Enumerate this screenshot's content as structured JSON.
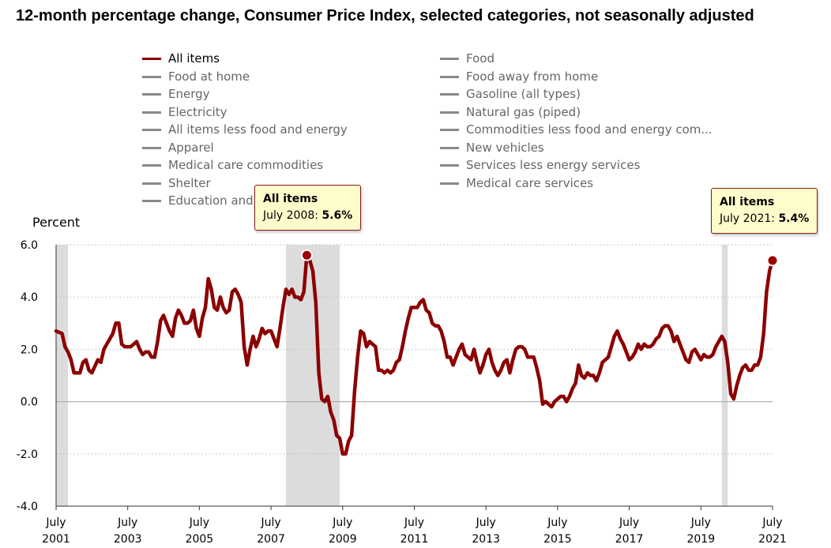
{
  "chart_data": {
    "type": "line",
    "title": "12-month percentage change, Consumer Price Index, selected categories, not seasonally adjusted",
    "ylabel": "Percent",
    "xlabel": "",
    "ylim": [
      -4.0,
      6.0
    ],
    "xlim": [
      "2001-07",
      "2021-07"
    ],
    "y_ticks": [
      "6.0",
      "4.0",
      "2.0",
      "0.0",
      "-2.0",
      "-4.0"
    ],
    "x_ticks": [
      {
        "month": "July",
        "year": "2001"
      },
      {
        "month": "July",
        "year": "2003"
      },
      {
        "month": "July",
        "year": "2005"
      },
      {
        "month": "July",
        "year": "2007"
      },
      {
        "month": "July",
        "year": "2009"
      },
      {
        "month": "July",
        "year": "2011"
      },
      {
        "month": "July",
        "year": "2013"
      },
      {
        "month": "July",
        "year": "2015"
      },
      {
        "month": "July",
        "year": "2017"
      },
      {
        "month": "July",
        "year": "2019"
      },
      {
        "month": "July",
        "year": "2021"
      }
    ],
    "grid": "horizontal-dotted",
    "recessions": [
      {
        "start": "2001-07",
        "end": "2001-11"
      },
      {
        "start": "2007-12",
        "end": "2009-06"
      },
      {
        "start": "2020-02",
        "end": "2020-04"
      }
    ],
    "series": [
      {
        "name": "All items",
        "color": "#8b0000",
        "points": [
          [
            "2001-07",
            2.7
          ],
          [
            "2001-09",
            2.6
          ],
          [
            "2001-10",
            2.1
          ],
          [
            "2001-11",
            1.9
          ],
          [
            "2001-12",
            1.6
          ],
          [
            "2002-01",
            1.1
          ],
          [
            "2002-03",
            1.1
          ],
          [
            "2002-04",
            1.5
          ],
          [
            "2002-05",
            1.6
          ],
          [
            "2002-06",
            1.2
          ],
          [
            "2002-07",
            1.1
          ],
          [
            "2002-09",
            1.6
          ],
          [
            "2002-10",
            1.5
          ],
          [
            "2002-11",
            2.0
          ],
          [
            "2002-12",
            2.2
          ],
          [
            "2003-01",
            2.4
          ],
          [
            "2003-02",
            2.6
          ],
          [
            "2003-03",
            3.0
          ],
          [
            "2003-04",
            3.0
          ],
          [
            "2003-05",
            2.2
          ],
          [
            "2003-06",
            2.1
          ],
          [
            "2003-07",
            2.1
          ],
          [
            "2003-08",
            2.1
          ],
          [
            "2003-09",
            2.2
          ],
          [
            "2003-10",
            2.3
          ],
          [
            "2003-11",
            2.0
          ],
          [
            "2003-12",
            1.8
          ],
          [
            "2004-01",
            1.9
          ],
          [
            "2004-02",
            1.9
          ],
          [
            "2004-03",
            1.7
          ],
          [
            "2004-04",
            1.7
          ],
          [
            "2004-05",
            2.3
          ],
          [
            "2004-06",
            3.1
          ],
          [
            "2004-07",
            3.3
          ],
          [
            "2004-08",
            3.0
          ],
          [
            "2004-09",
            2.7
          ],
          [
            "2004-10",
            2.5
          ],
          [
            "2004-11",
            3.2
          ],
          [
            "2004-12",
            3.5
          ],
          [
            "2005-01",
            3.3
          ],
          [
            "2005-02",
            3.0
          ],
          [
            "2005-03",
            3.0
          ],
          [
            "2005-04",
            3.1
          ],
          [
            "2005-05",
            3.5
          ],
          [
            "2005-06",
            2.8
          ],
          [
            "2005-07",
            2.5
          ],
          [
            "2005-08",
            3.2
          ],
          [
            "2005-09",
            3.6
          ],
          [
            "2005-10",
            4.7
          ],
          [
            "2005-11",
            4.3
          ],
          [
            "2005-12",
            3.6
          ],
          [
            "2006-01",
            3.5
          ],
          [
            "2006-02",
            4.0
          ],
          [
            "2006-03",
            3.6
          ],
          [
            "2006-04",
            3.4
          ],
          [
            "2006-05",
            3.5
          ],
          [
            "2006-06",
            4.2
          ],
          [
            "2006-07",
            4.3
          ],
          [
            "2006-08",
            4.1
          ],
          [
            "2006-09",
            3.8
          ],
          [
            "2006-10",
            2.1
          ],
          [
            "2006-11",
            1.4
          ],
          [
            "2006-12",
            2.0
          ],
          [
            "2007-01",
            2.5
          ],
          [
            "2007-02",
            2.1
          ],
          [
            "2007-03",
            2.4
          ],
          [
            "2007-04",
            2.8
          ],
          [
            "2007-05",
            2.6
          ],
          [
            "2007-06",
            2.7
          ],
          [
            "2007-07",
            2.7
          ],
          [
            "2007-08",
            2.4
          ],
          [
            "2007-09",
            2.1
          ],
          [
            "2007-10",
            2.8
          ],
          [
            "2007-11",
            3.6
          ],
          [
            "2007-12",
            4.3
          ],
          [
            "2008-01",
            4.1
          ],
          [
            "2008-02",
            4.3
          ],
          [
            "2008-03",
            4.0
          ],
          [
            "2008-04",
            4.0
          ],
          [
            "2008-05",
            3.9
          ],
          [
            "2008-06",
            4.2
          ],
          [
            "2008-07",
            5.6
          ],
          [
            "2008-08",
            5.4
          ],
          [
            "2008-09",
            5.0
          ],
          [
            "2008-10",
            3.8
          ],
          [
            "2008-11",
            1.1
          ],
          [
            "2008-12",
            0.1
          ],
          [
            "2009-01",
            0.0
          ],
          [
            "2009-02",
            0.2
          ],
          [
            "2009-03",
            -0.4
          ],
          [
            "2009-04",
            -0.7
          ],
          [
            "2009-05",
            -1.3
          ],
          [
            "2009-06",
            -1.4
          ],
          [
            "2009-07",
            -2.0
          ],
          [
            "2009-08",
            -2.0
          ],
          [
            "2009-09",
            -1.5
          ],
          [
            "2009-10",
            -1.3
          ],
          [
            "2009-11",
            0.4
          ],
          [
            "2009-12",
            1.7
          ],
          [
            "2010-01",
            2.7
          ],
          [
            "2010-02",
            2.6
          ],
          [
            "2010-03",
            2.1
          ],
          [
            "2010-04",
            2.3
          ],
          [
            "2010-05",
            2.2
          ],
          [
            "2010-06",
            2.1
          ],
          [
            "2010-07",
            1.2
          ],
          [
            "2010-08",
            1.2
          ],
          [
            "2010-09",
            1.1
          ],
          [
            "2010-10",
            1.2
          ],
          [
            "2010-11",
            1.1
          ],
          [
            "2010-12",
            1.2
          ],
          [
            "2011-01",
            1.5
          ],
          [
            "2011-02",
            1.6
          ],
          [
            "2011-03",
            2.1
          ],
          [
            "2011-04",
            2.7
          ],
          [
            "2011-05",
            3.2
          ],
          [
            "2011-06",
            3.6
          ],
          [
            "2011-07",
            3.6
          ],
          [
            "2011-08",
            3.6
          ],
          [
            "2011-09",
            3.8
          ],
          [
            "2011-10",
            3.9
          ],
          [
            "2011-11",
            3.5
          ],
          [
            "2011-12",
            3.4
          ],
          [
            "2012-01",
            3.0
          ],
          [
            "2012-02",
            2.9
          ],
          [
            "2012-03",
            2.9
          ],
          [
            "2012-04",
            2.7
          ],
          [
            "2012-05",
            2.3
          ],
          [
            "2012-06",
            1.7
          ],
          [
            "2012-07",
            1.7
          ],
          [
            "2012-08",
            1.4
          ],
          [
            "2012-09",
            1.7
          ],
          [
            "2012-10",
            2.0
          ],
          [
            "2012-11",
            2.2
          ],
          [
            "2012-12",
            1.8
          ],
          [
            "2013-01",
            1.7
          ],
          [
            "2013-02",
            1.6
          ],
          [
            "2013-03",
            2.0
          ],
          [
            "2013-04",
            1.5
          ],
          [
            "2013-05",
            1.1
          ],
          [
            "2013-06",
            1.4
          ],
          [
            "2013-07",
            1.8
          ],
          [
            "2013-08",
            2.0
          ],
          [
            "2013-09",
            1.5
          ],
          [
            "2013-10",
            1.2
          ],
          [
            "2013-11",
            1.0
          ],
          [
            "2013-12",
            1.2
          ],
          [
            "2014-01",
            1.5
          ],
          [
            "2014-02",
            1.6
          ],
          [
            "2014-03",
            1.1
          ],
          [
            "2014-04",
            1.6
          ],
          [
            "2014-05",
            2.0
          ],
          [
            "2014-06",
            2.1
          ],
          [
            "2014-07",
            2.1
          ],
          [
            "2014-08",
            2.0
          ],
          [
            "2014-09",
            1.7
          ],
          [
            "2014-10",
            1.7
          ],
          [
            "2014-11",
            1.7
          ],
          [
            "2014-12",
            1.3
          ],
          [
            "2015-01",
            0.8
          ],
          [
            "2015-02",
            -0.1
          ],
          [
            "2015-03",
            0.0
          ],
          [
            "2015-04",
            -0.1
          ],
          [
            "2015-05",
            -0.2
          ],
          [
            "2015-06",
            0.0
          ],
          [
            "2015-07",
            0.1
          ],
          [
            "2015-08",
            0.2
          ],
          [
            "2015-09",
            0.2
          ],
          [
            "2015-10",
            0.0
          ],
          [
            "2015-11",
            0.2
          ],
          [
            "2015-12",
            0.5
          ],
          [
            "2016-01",
            0.7
          ],
          [
            "2016-02",
            1.4
          ],
          [
            "2016-03",
            1.0
          ],
          [
            "2016-04",
            0.9
          ],
          [
            "2016-05",
            1.1
          ],
          [
            "2016-06",
            1.0
          ],
          [
            "2016-07",
            1.0
          ],
          [
            "2016-08",
            0.8
          ],
          [
            "2016-09",
            1.1
          ],
          [
            "2016-10",
            1.5
          ],
          [
            "2016-11",
            1.6
          ],
          [
            "2016-12",
            1.7
          ],
          [
            "2017-01",
            2.1
          ],
          [
            "2017-02",
            2.5
          ],
          [
            "2017-03",
            2.7
          ],
          [
            "2017-04",
            2.4
          ],
          [
            "2017-05",
            2.2
          ],
          [
            "2017-06",
            1.9
          ],
          [
            "2017-07",
            1.6
          ],
          [
            "2017-08",
            1.7
          ],
          [
            "2017-09",
            1.9
          ],
          [
            "2017-10",
            2.2
          ],
          [
            "2017-11",
            2.0
          ],
          [
            "2017-12",
            2.2
          ],
          [
            "2018-01",
            2.1
          ],
          [
            "2018-02",
            2.1
          ],
          [
            "2018-03",
            2.2
          ],
          [
            "2018-04",
            2.4
          ],
          [
            "2018-05",
            2.5
          ],
          [
            "2018-06",
            2.8
          ],
          [
            "2018-07",
            2.9
          ],
          [
            "2018-08",
            2.9
          ],
          [
            "2018-09",
            2.7
          ],
          [
            "2018-10",
            2.3
          ],
          [
            "2018-11",
            2.5
          ],
          [
            "2018-12",
            2.2
          ],
          [
            "2019-01",
            1.9
          ],
          [
            "2019-02",
            1.6
          ],
          [
            "2019-03",
            1.5
          ],
          [
            "2019-04",
            1.9
          ],
          [
            "2019-05",
            2.0
          ],
          [
            "2019-06",
            1.8
          ],
          [
            "2019-07",
            1.6
          ],
          [
            "2019-08",
            1.8
          ],
          [
            "2019-09",
            1.7
          ],
          [
            "2019-10",
            1.7
          ],
          [
            "2019-11",
            1.8
          ],
          [
            "2019-12",
            2.1
          ],
          [
            "2020-01",
            2.3
          ],
          [
            "2020-02",
            2.5
          ],
          [
            "2020-03",
            2.3
          ],
          [
            "2020-04",
            1.5
          ],
          [
            "2020-05",
            0.3
          ],
          [
            "2020-06",
            0.1
          ],
          [
            "2020-07",
            0.6
          ],
          [
            "2020-08",
            1.0
          ],
          [
            "2020-09",
            1.3
          ],
          [
            "2020-10",
            1.4
          ],
          [
            "2020-11",
            1.2
          ],
          [
            "2020-12",
            1.2
          ],
          [
            "2021-01",
            1.4
          ],
          [
            "2021-02",
            1.4
          ],
          [
            "2021-03",
            1.7
          ],
          [
            "2021-04",
            2.6
          ],
          [
            "2021-05",
            4.2
          ],
          [
            "2021-06",
            5.0
          ],
          [
            "2021-07",
            5.4
          ]
        ]
      }
    ],
    "highlight_points": [
      {
        "x": "2008-07",
        "y": 5.6
      },
      {
        "x": "2021-07",
        "y": 5.4
      }
    ]
  },
  "legend": {
    "left": [
      "All items",
      "Food at home",
      "Energy",
      "Electricity",
      "All items less food and energy",
      "Apparel",
      "Medical care commodities",
      "Shelter",
      "Education and"
    ],
    "right": [
      "Food",
      "Food away from home",
      "Gasoline (all types)",
      "Natural gas (piped)",
      "Commodities less food and energy com...",
      "New vehicles",
      "Services less energy services",
      "Medical care services"
    ],
    "active": "All items",
    "inactive_color": "#888888"
  },
  "tooltips": [
    {
      "series": "All items",
      "period": "July 2008:",
      "value": "5.6%"
    },
    {
      "series": "All items",
      "period": "July 2021:",
      "value": "5.4%"
    }
  ]
}
